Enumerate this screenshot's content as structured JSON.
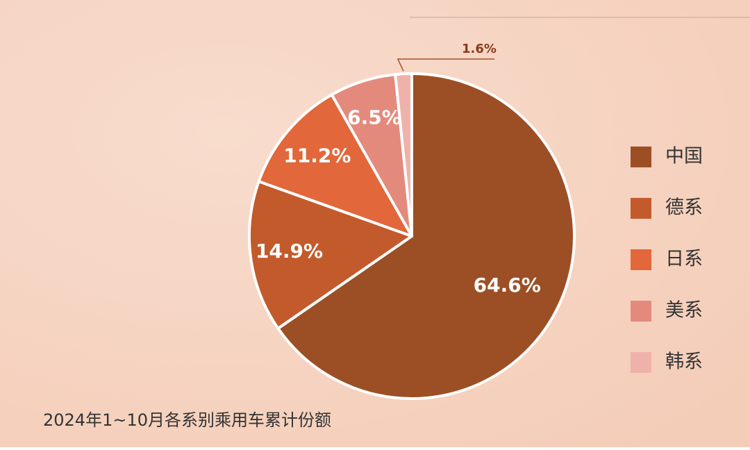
{
  "chart_data": {
    "type": "pie",
    "title": "2024年1~10月各系别乘用车累计份额",
    "categories": [
      "中国",
      "德系",
      "日系",
      "美系",
      "韩系"
    ],
    "values": [
      64.6,
      14.9,
      11.2,
      6.5,
      1.6
    ],
    "value_labels": [
      "64.6%",
      "14.9%",
      "11.2%",
      "6.5%",
      "1.6%"
    ],
    "colors": [
      "#9c4f25",
      "#c35a2c",
      "#e2673a",
      "#e38a7c",
      "#efb2aa"
    ],
    "legend": "right"
  }
}
